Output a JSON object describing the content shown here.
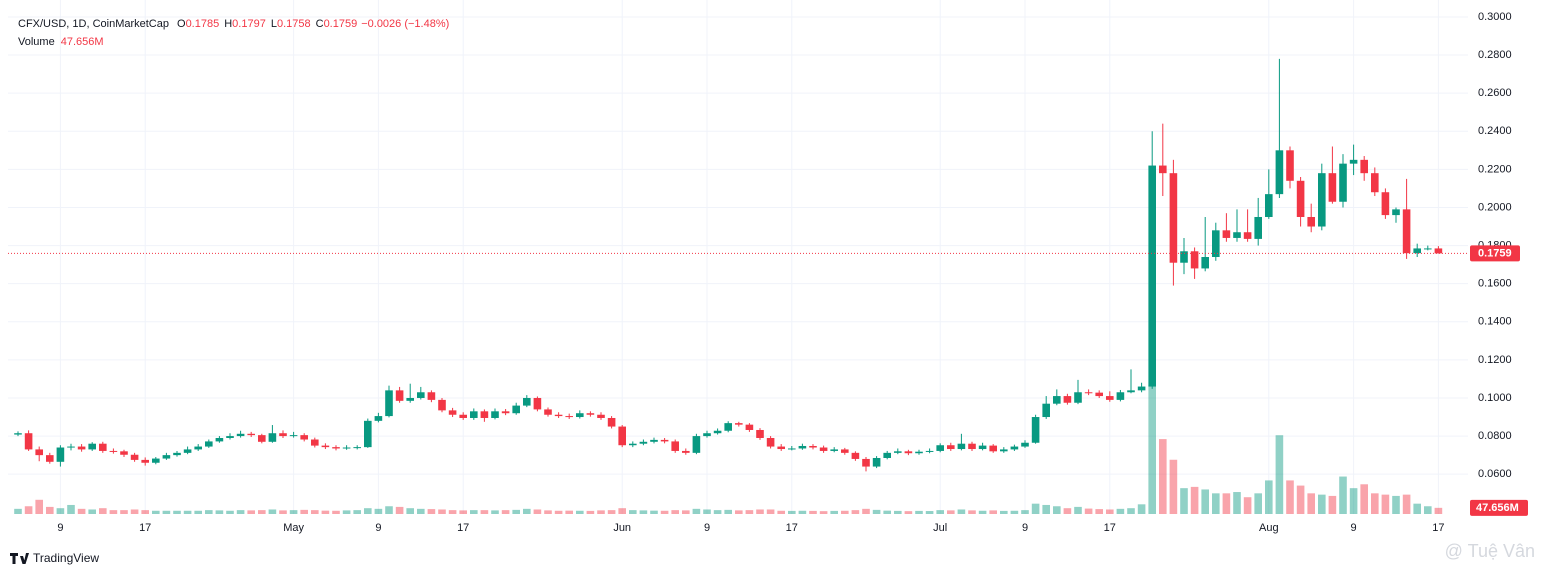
{
  "chart_data": {
    "type": "candlestick",
    "title": "CFX/USD, 1D, CoinMarketCap",
    "ohlc": [
      {
        "label": "O",
        "value": "0.1785"
      },
      {
        "label": "H",
        "value": "0.1797"
      },
      {
        "label": "L",
        "value": "0.1758"
      },
      {
        "label": "C",
        "value": "0.1759"
      }
    ],
    "change": "−0.0026 (−1.48%)",
    "volume_title": "Volume",
    "volume_value": "47.656M",
    "last_price_label": "0.1759",
    "brand": "TradingView",
    "watermark": "@ Tuệ Vân",
    "up_color": "#089981",
    "down_color": "#f23645",
    "categories": [
      null,
      null,
      null,
      null,
      "9",
      null,
      null,
      null,
      null,
      null,
      null,
      null,
      "17",
      null,
      null,
      null,
      null,
      null,
      null,
      null,
      null,
      null,
      null,
      null,
      null,
      null,
      "May",
      null,
      null,
      null,
      null,
      null,
      null,
      null,
      "9",
      null,
      null,
      null,
      null,
      null,
      null,
      null,
      "17",
      null,
      null,
      null,
      null,
      null,
      null,
      null,
      null,
      null,
      null,
      null,
      null,
      null,
      null,
      "Jun",
      null,
      null,
      null,
      null,
      null,
      null,
      null,
      "9",
      null,
      null,
      null,
      null,
      null,
      null,
      null,
      "17",
      null,
      null,
      null,
      null,
      null,
      null,
      null,
      null,
      null,
      null,
      null,
      null,
      null,
      "Jul",
      null,
      null,
      null,
      null,
      null,
      null,
      null,
      "9",
      null,
      null,
      null,
      null,
      null,
      null,
      null,
      "17",
      null,
      null,
      null,
      null,
      null,
      null,
      null,
      null,
      null,
      null,
      null,
      null,
      null,
      null,
      "Aug",
      null,
      null,
      null,
      null,
      null,
      null,
      null,
      "9",
      null,
      null,
      null,
      null,
      null,
      null,
      null,
      "17"
    ],
    "open": [
      0.0808,
      0.0815,
      0.073,
      0.07,
      0.0665,
      0.074,
      0.0745,
      0.073,
      0.076,
      0.0722,
      0.072,
      0.0702,
      0.0675,
      0.066,
      0.0682,
      0.07,
      0.0712,
      0.073,
      0.0745,
      0.0772,
      0.079,
      0.08,
      0.0812,
      0.0805,
      0.077,
      0.0815,
      0.08,
      0.0805,
      0.0782,
      0.075,
      0.0742,
      0.0735,
      0.074,
      0.0742,
      0.088,
      0.0905,
      0.104,
      0.0985,
      0.1,
      0.103,
      0.099,
      0.0935,
      0.0912,
      0.0895,
      0.093,
      0.0895,
      0.093,
      0.092,
      0.096,
      0.1,
      0.094,
      0.0912,
      0.0905,
      0.09,
      0.092,
      0.0912,
      0.0895,
      0.085,
      0.0752,
      0.076,
      0.077,
      0.078,
      0.0772,
      0.0722,
      0.0712,
      0.08,
      0.0815,
      0.0828,
      0.0868,
      0.086,
      0.0832,
      0.079,
      0.0745,
      0.0732,
      0.0735,
      0.0748,
      0.074,
      0.0722,
      0.073,
      0.0712,
      0.068,
      0.064,
      0.0685,
      0.0712,
      0.072,
      0.071,
      0.0718,
      0.0722,
      0.0752,
      0.0732,
      0.076,
      0.0732,
      0.075,
      0.072,
      0.073,
      0.0745,
      0.0765,
      0.09,
      0.097,
      0.101,
      0.0975,
      0.103,
      0.1028,
      0.101,
      0.099,
      0.103,
      0.104,
      0.106,
      0.222,
      0.218,
      0.171,
      0.177,
      0.168,
      0.174,
      0.188,
      0.184,
      0.187,
      0.1835,
      0.195,
      0.207,
      0.23,
      0.214,
      0.195,
      0.19,
      0.218,
      0.203,
      0.223,
      0.225,
      0.218,
      0.208,
      0.196,
      0.199,
      0.176,
      0.1785,
      0.1785
    ],
    "high": [
      0.0825,
      0.083,
      0.0745,
      0.0712,
      0.0752,
      0.076,
      0.0758,
      0.0768,
      0.077,
      0.0735,
      0.0728,
      0.0712,
      0.0688,
      0.069,
      0.0712,
      0.0722,
      0.0745,
      0.0758,
      0.0782,
      0.08,
      0.0815,
      0.0828,
      0.0822,
      0.0812,
      0.0858,
      0.083,
      0.0822,
      0.0815,
      0.0792,
      0.0762,
      0.0752,
      0.0752,
      0.0752,
      0.0892,
      0.0922,
      0.1065,
      0.1058,
      0.1075,
      0.1058,
      0.104,
      0.1,
      0.0948,
      0.0925,
      0.0945,
      0.094,
      0.0945,
      0.0942,
      0.0975,
      0.1015,
      0.1008,
      0.095,
      0.0925,
      0.0918,
      0.0935,
      0.093,
      0.0925,
      0.0905,
      0.0858,
      0.0772,
      0.0782,
      0.0792,
      0.079,
      0.0782,
      0.0735,
      0.0812,
      0.0828,
      0.084,
      0.0878,
      0.0875,
      0.0868,
      0.0842,
      0.08,
      0.0758,
      0.0748,
      0.076,
      0.0758,
      0.075,
      0.0742,
      0.0738,
      0.072,
      0.069,
      0.0695,
      0.0722,
      0.0735,
      0.0728,
      0.0728,
      0.0735,
      0.0762,
      0.0765,
      0.0812,
      0.077,
      0.0765,
      0.0758,
      0.0742,
      0.0755,
      0.0778,
      0.0912,
      0.101,
      0.1045,
      0.1022,
      0.1095,
      0.1045,
      0.104,
      0.1035,
      0.1042,
      0.115,
      0.108,
      0.24,
      0.244,
      0.225,
      0.184,
      0.179,
      0.195,
      0.192,
      0.197,
      0.199,
      0.199,
      0.205,
      0.22,
      0.278,
      0.232,
      0.216,
      0.202,
      0.223,
      0.232,
      0.228,
      0.233,
      0.227,
      0.221,
      0.21,
      0.2,
      0.215,
      0.181,
      0.18,
      0.1797
    ],
    "low": [
      0.08,
      0.0722,
      0.0668,
      0.0655,
      0.064,
      0.0725,
      0.0718,
      0.0722,
      0.0712,
      0.0708,
      0.069,
      0.0665,
      0.0645,
      0.0652,
      0.0675,
      0.0692,
      0.0705,
      0.0722,
      0.0738,
      0.0765,
      0.0782,
      0.0792,
      0.0795,
      0.0762,
      0.0765,
      0.079,
      0.0792,
      0.0772,
      0.074,
      0.0732,
      0.0725,
      0.0728,
      0.073,
      0.0738,
      0.0872,
      0.0898,
      0.0975,
      0.0975,
      0.0992,
      0.0978,
      0.0925,
      0.09,
      0.0885,
      0.0885,
      0.0875,
      0.0888,
      0.091,
      0.0912,
      0.0952,
      0.093,
      0.0902,
      0.0895,
      0.089,
      0.0892,
      0.0902,
      0.0885,
      0.084,
      0.0742,
      0.0742,
      0.0752,
      0.0762,
      0.0762,
      0.0712,
      0.0702,
      0.0705,
      0.0792,
      0.0808,
      0.082,
      0.085,
      0.0822,
      0.078,
      0.0735,
      0.0722,
      0.0725,
      0.0728,
      0.073,
      0.0712,
      0.0715,
      0.0702,
      0.067,
      0.0615,
      0.0632,
      0.0678,
      0.0705,
      0.07,
      0.0702,
      0.071,
      0.0715,
      0.0722,
      0.0725,
      0.0722,
      0.0725,
      0.0712,
      0.0712,
      0.0722,
      0.0738,
      0.076,
      0.089,
      0.0962,
      0.0965,
      0.0968,
      0.1015,
      0.1,
      0.098,
      0.0982,
      0.1025,
      0.103,
      0.1048,
      0.206,
      0.159,
      0.165,
      0.1625,
      0.1665,
      0.172,
      0.182,
      0.182,
      0.182,
      0.18,
      0.194,
      0.205,
      0.21,
      0.19,
      0.187,
      0.188,
      0.202,
      0.2,
      0.217,
      0.214,
      0.206,
      0.194,
      0.192,
      0.173,
      0.174,
      0.1775,
      0.1758
    ],
    "close": [
      0.0815,
      0.073,
      0.07,
      0.0665,
      0.074,
      0.0745,
      0.073,
      0.076,
      0.0722,
      0.072,
      0.0702,
      0.0675,
      0.066,
      0.0682,
      0.07,
      0.0712,
      0.073,
      0.0745,
      0.0772,
      0.079,
      0.08,
      0.0812,
      0.0805,
      0.077,
      0.0815,
      0.08,
      0.0805,
      0.0782,
      0.075,
      0.0742,
      0.0735,
      0.074,
      0.0742,
      0.088,
      0.0905,
      0.104,
      0.0985,
      0.1,
      0.103,
      0.099,
      0.0935,
      0.0912,
      0.0895,
      0.093,
      0.0895,
      0.093,
      0.092,
      0.096,
      0.1,
      0.094,
      0.0912,
      0.0905,
      0.09,
      0.092,
      0.0912,
      0.0895,
      0.085,
      0.0752,
      0.076,
      0.077,
      0.078,
      0.0772,
      0.0722,
      0.0712,
      0.08,
      0.0815,
      0.0828,
      0.0868,
      0.086,
      0.0832,
      0.079,
      0.0745,
      0.0732,
      0.0735,
      0.0748,
      0.074,
      0.0722,
      0.073,
      0.0712,
      0.068,
      0.064,
      0.0685,
      0.0712,
      0.072,
      0.071,
      0.0718,
      0.0722,
      0.0752,
      0.0732,
      0.076,
      0.0732,
      0.075,
      0.072,
      0.073,
      0.0745,
      0.0765,
      0.09,
      0.097,
      0.101,
      0.0975,
      0.103,
      0.1028,
      0.101,
      0.099,
      0.103,
      0.104,
      0.106,
      0.222,
      0.218,
      0.171,
      0.177,
      0.168,
      0.174,
      0.188,
      0.184,
      0.187,
      0.1835,
      0.195,
      0.207,
      0.23,
      0.214,
      0.195,
      0.19,
      0.218,
      0.203,
      0.223,
      0.225,
      0.218,
      0.208,
      0.196,
      0.199,
      0.176,
      0.1785,
      0.1785,
      0.1759
    ],
    "volume": [
      40,
      60,
      110,
      55,
      45,
      70,
      40,
      35,
      45,
      30,
      30,
      35,
      30,
      25,
      25,
      25,
      25,
      25,
      30,
      28,
      25,
      30,
      28,
      30,
      35,
      28,
      30,
      32,
      30,
      26,
      25,
      28,
      30,
      45,
      40,
      60,
      55,
      45,
      40,
      38,
      35,
      30,
      28,
      30,
      30,
      28,
      30,
      32,
      40,
      35,
      28,
      25,
      26,
      25,
      24,
      28,
      30,
      45,
      30,
      28,
      26,
      25,
      30,
      28,
      40,
      35,
      30,
      32,
      28,
      30,
      35,
      35,
      25,
      24,
      25,
      24,
      22,
      24,
      25,
      30,
      40,
      32,
      26,
      24,
      22,
      24,
      23,
      30,
      28,
      35,
      28,
      25,
      28,
      24,
      25,
      30,
      80,
      70,
      60,
      45,
      55,
      42,
      38,
      35,
      40,
      45,
      75,
      1000,
      580,
      420,
      200,
      210,
      190,
      160,
      160,
      170,
      130,
      160,
      260,
      610,
      260,
      220,
      160,
      150,
      140,
      290,
      200,
      230,
      160,
      150,
      140,
      150,
      80,
      60,
      47.656
    ],
    "volume_lim": [
      0,
      1200
    ],
    "ylim": [
      0.0391,
      0.3089
    ],
    "yticks": [
      {
        "value": 0.3,
        "label": "0.3000"
      },
      {
        "value": 0.28,
        "label": "0.2800"
      },
      {
        "value": 0.26,
        "label": "0.2600"
      },
      {
        "value": 0.24,
        "label": "0.2400"
      },
      {
        "value": 0.22,
        "label": "0.2200"
      },
      {
        "value": 0.2,
        "label": "0.2000"
      },
      {
        "value": 0.18,
        "label": "0.1800"
      },
      {
        "value": 0.16,
        "label": "0.1600"
      },
      {
        "value": 0.14,
        "label": "0.1400"
      },
      {
        "value": 0.12,
        "label": "0.1200"
      },
      {
        "value": 0.1,
        "label": "0.1000"
      },
      {
        "value": 0.08,
        "label": "0.0800"
      },
      {
        "value": 0.06,
        "label": "0.0600"
      }
    ],
    "grid": true
  }
}
